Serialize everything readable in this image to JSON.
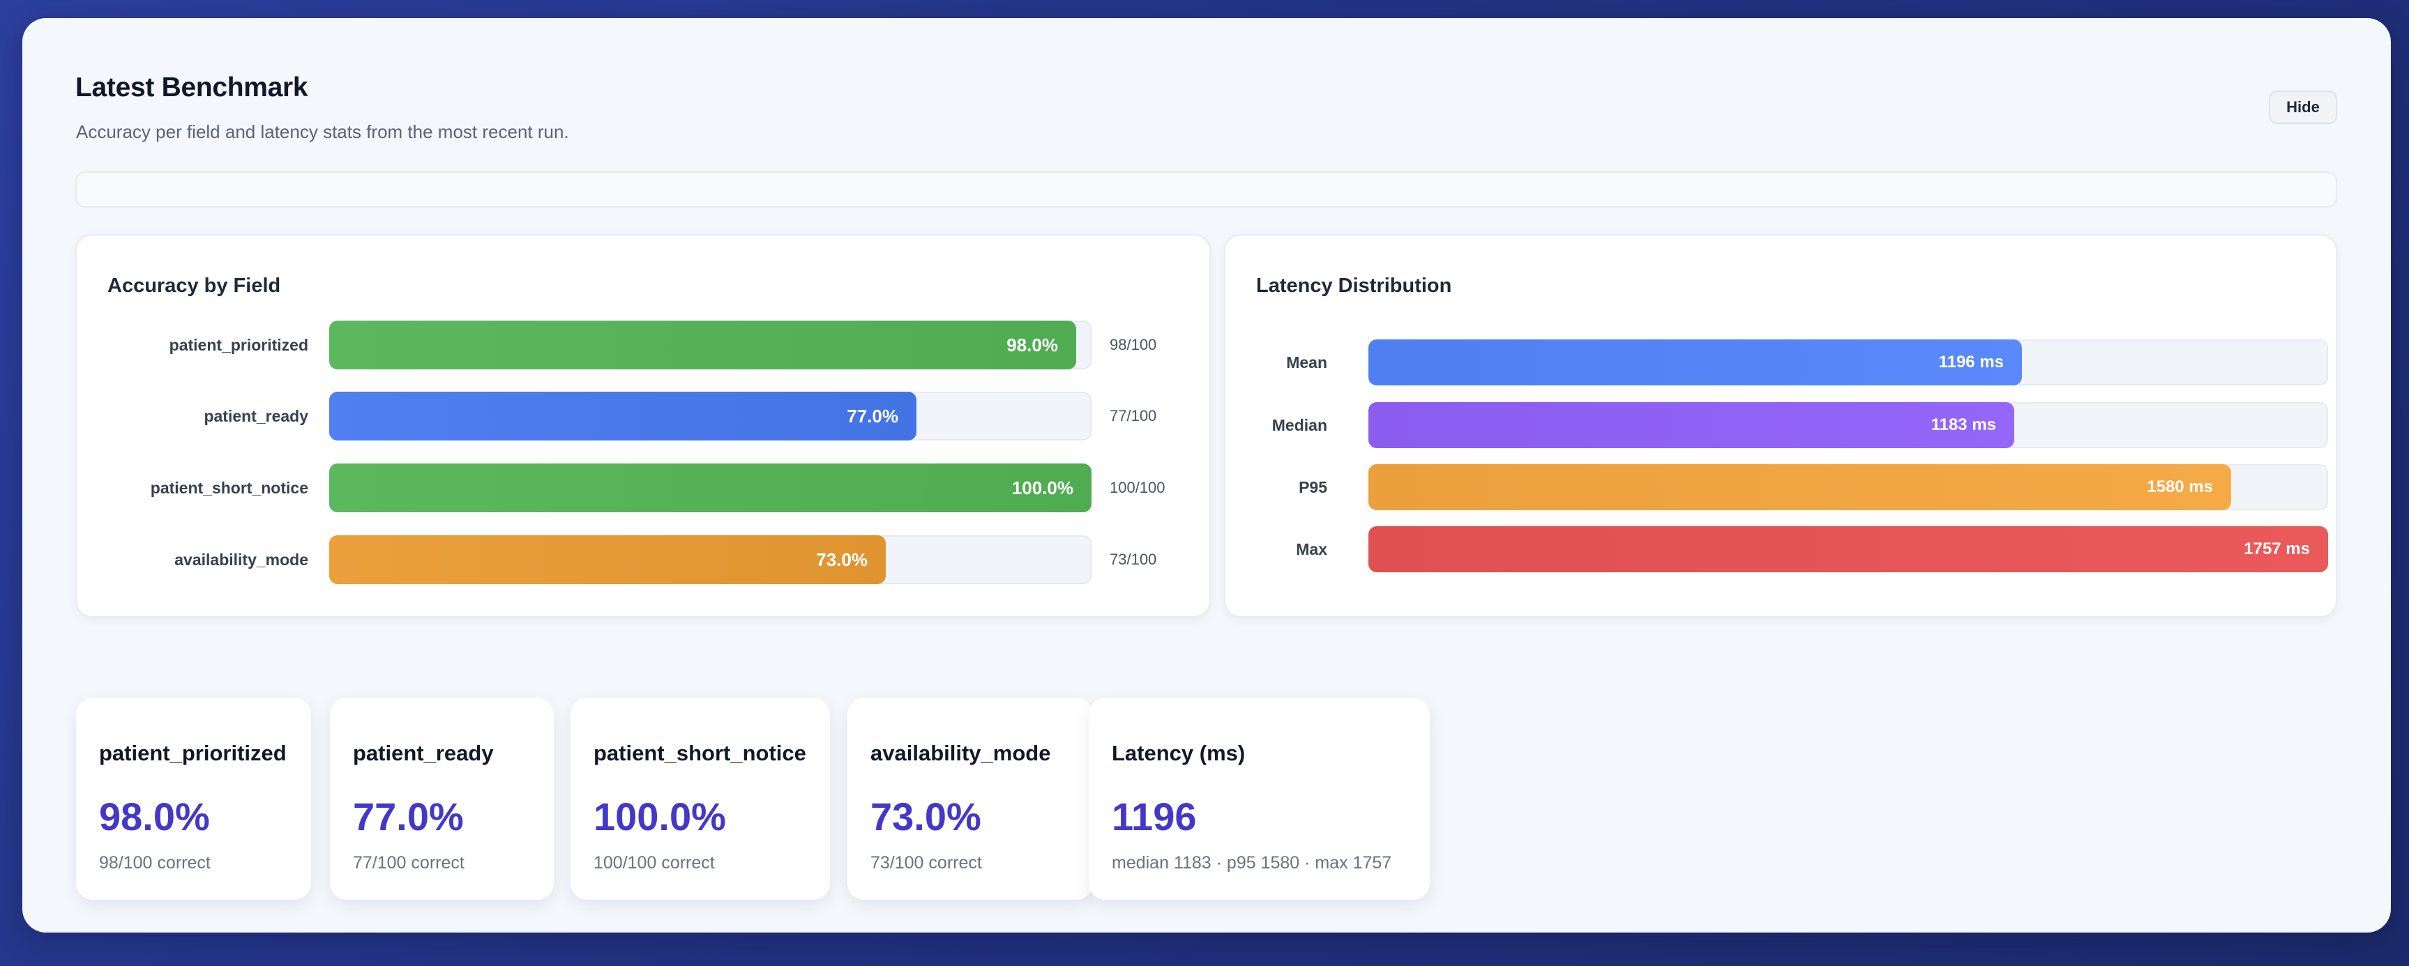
{
  "header": {
    "title": "Latest Benchmark",
    "subtitle": "Accuracy per field and latency stats from the most recent run.",
    "hide_label": "Hide"
  },
  "colors": {
    "green": "#5cb85c",
    "blue": "#4f7ff0",
    "purple": "#8b5cf0",
    "orange": "#eba03c",
    "red": "#e05050",
    "accent": "#4338ca"
  },
  "accuracy": {
    "title": "Accuracy by Field",
    "rows": [
      {
        "field": "patient_prioritized",
        "pct": 98.0,
        "pct_label": "98.0%",
        "count": "98/100",
        "color": "green"
      },
      {
        "field": "patient_ready",
        "pct": 77.0,
        "pct_label": "77.0%",
        "count": "77/100",
        "color": "blue"
      },
      {
        "field": "patient_short_notice",
        "pct": 100.0,
        "pct_label": "100.0%",
        "count": "100/100",
        "color": "green"
      },
      {
        "field": "availability_mode",
        "pct": 73.0,
        "pct_label": "73.0%",
        "count": "73/100",
        "color": "orange"
      }
    ]
  },
  "latency": {
    "title": "Latency Distribution",
    "max_value": 1757,
    "rows": [
      {
        "label": "Mean",
        "value": 1196,
        "value_label": "1196 ms",
        "color": "blue"
      },
      {
        "label": "Median",
        "value": 1183,
        "value_label": "1183 ms",
        "color": "purple"
      },
      {
        "label": "P95",
        "value": 1580,
        "value_label": "1580 ms",
        "color": "orange"
      },
      {
        "label": "Max",
        "value": 1757,
        "value_label": "1757 ms",
        "color": "red"
      }
    ]
  },
  "stats": [
    {
      "title": "patient_prioritized",
      "value": "98.0%",
      "sub": "98/100 correct"
    },
    {
      "title": "patient_ready",
      "value": "77.0%",
      "sub": "77/100 correct"
    },
    {
      "title": "patient_short_notice",
      "value": "100.0%",
      "sub": "100/100 correct"
    },
    {
      "title": "availability_mode",
      "value": "73.0%",
      "sub": "73/100 correct"
    },
    {
      "title": "Latency (ms)",
      "value": "1196",
      "sub": "median 1183 · p95 1580 · max 1757"
    }
  ]
}
